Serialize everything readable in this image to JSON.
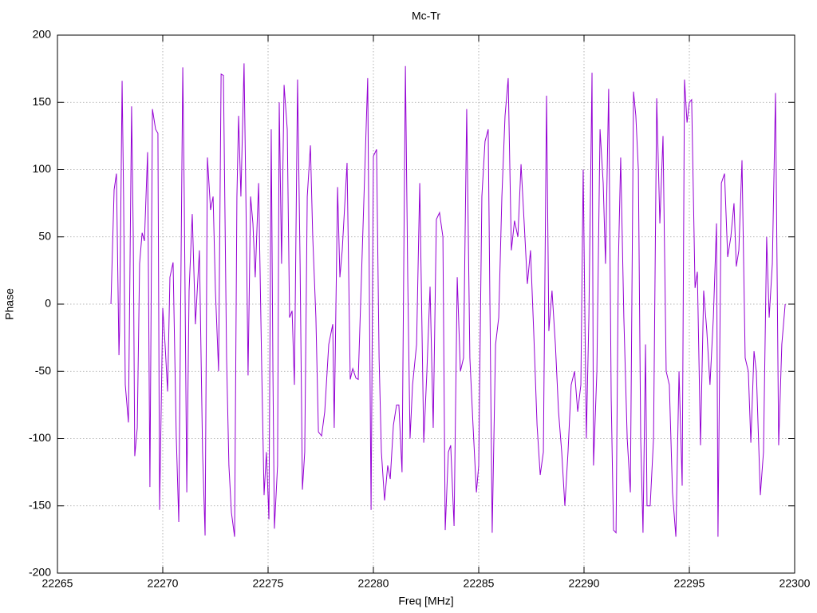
{
  "chart_data": {
    "type": "line",
    "title": "Mc-Tr",
    "xlabel": "Freq [MHz]",
    "ylabel": "Phase",
    "x": [
      22267.54,
      22267.69,
      22267.8,
      22267.92,
      22267.95,
      22268.07,
      22268.14,
      22268.22,
      22268.37,
      22268.52,
      22268.6,
      22268.67,
      22268.79,
      22268.9,
      22269.02,
      22269.13,
      22269.28,
      22269.39,
      22269.51,
      22269.66,
      22269.77,
      22269.85,
      22270.0,
      22270.11,
      22270.23,
      22270.34,
      22270.49,
      22270.64,
      22270.76,
      22270.95,
      22271.02,
      22271.14,
      22271.25,
      22271.4,
      22271.55,
      22271.74,
      22271.89,
      22272.01,
      22272.12,
      22272.27,
      22272.39,
      22272.5,
      22272.65,
      22272.77,
      22272.88,
      22273.03,
      22273.14,
      22273.26,
      22273.41,
      22273.52,
      22273.6,
      22273.71,
      22273.86,
      22273.98,
      22274.05,
      22274.17,
      22274.28,
      22274.39,
      22274.55,
      22274.7,
      22274.81,
      22274.92,
      22275.04,
      22275.15,
      22275.23,
      22275.3,
      22275.45,
      22275.53,
      22275.64,
      22275.76,
      22275.91,
      22276.02,
      22276.14,
      22276.25,
      22276.4,
      22276.52,
      22276.63,
      22276.74,
      22276.86,
      22277.01,
      22277.12,
      22277.27,
      22277.39,
      22277.54,
      22277.69,
      22277.88,
      22278.07,
      22278.14,
      22278.3,
      22278.41,
      22278.52,
      22278.75,
      22278.9,
      22279.02,
      22279.17,
      22279.28,
      22279.73,
      22279.89,
      22280.0,
      22280.15,
      22280.27,
      22280.38,
      22280.53,
      22280.68,
      22280.8,
      22280.95,
      22281.1,
      22281.21,
      22281.36,
      22281.52,
      22281.63,
      22281.74,
      22281.86,
      22282.05,
      22282.2,
      22282.39,
      22282.54,
      22282.69,
      22282.84,
      22282.99,
      22283.14,
      22283.3,
      22283.41,
      22283.56,
      22283.67,
      22283.83,
      22283.98,
      22284.13,
      22284.28,
      22284.43,
      22284.58,
      22284.73,
      22284.89,
      22285.0,
      22285.15,
      22285.3,
      22285.45,
      22285.64,
      22285.8,
      22285.95,
      22286.1,
      22286.25,
      22286.4,
      22286.55,
      22286.7,
      22286.86,
      22287.01,
      22287.16,
      22287.31,
      22287.46,
      22287.61,
      22287.77,
      22287.92,
      22288.07,
      22288.22,
      22288.33,
      22288.48,
      22288.64,
      22288.79,
      22288.94,
      22289.09,
      22289.24,
      22289.39,
      22289.55,
      22289.7,
      22289.85,
      22289.96,
      22290.11,
      22290.23,
      22290.38,
      22290.45,
      22290.61,
      22290.76,
      22290.91,
      22291.02,
      22291.17,
      22291.29,
      22291.4,
      22291.52,
      22291.63,
      22291.74,
      22291.89,
      22292.05,
      22292.2,
      22292.35,
      22292.46,
      22292.58,
      22292.69,
      22292.8,
      22292.92,
      22292.99,
      22293.14,
      22293.3,
      22293.45,
      22293.6,
      22293.75,
      22293.9,
      22294.05,
      22294.2,
      22294.36,
      22294.51,
      22294.66,
      22294.77,
      22294.89,
      22295.0,
      22295.11,
      22295.27,
      22295.38,
      22295.53,
      22295.68,
      22295.83,
      22295.98,
      22296.14,
      22296.29,
      22296.36,
      22296.52,
      22296.67,
      22296.82,
      22296.97,
      22297.12,
      22297.23,
      22297.35,
      22297.5,
      22297.65,
      22297.8,
      22297.92,
      22298.07,
      22298.18,
      22298.37,
      22298.52,
      22298.67,
      22298.79,
      22298.94,
      22299.09,
      22299.24,
      22299.39,
      22299.55
    ],
    "series": [
      {
        "name": "Mc-Tr",
        "color": "#9400d3",
        "values": [
          0,
          85,
          97,
          -38,
          -20,
          166,
          80,
          -60,
          -88,
          147,
          50,
          -113,
          -92,
          30,
          53,
          47,
          113,
          -136,
          145,
          130,
          127,
          -153,
          -3,
          -30,
          -65,
          20,
          31,
          -98,
          -162,
          176,
          80,
          -140,
          10,
          67,
          -15,
          40,
          -110,
          -172,
          109,
          70,
          80,
          10,
          -50,
          171,
          170,
          -40,
          -120,
          -155,
          -173,
          80,
          140,
          80,
          179,
          40,
          -53,
          80,
          60,
          20,
          90,
          -50,
          -142,
          -110,
          -160,
          130,
          -50,
          -167,
          -120,
          150,
          30,
          163,
          130,
          -10,
          -5,
          -60,
          167,
          30,
          -138,
          -110,
          80,
          118,
          50,
          -10,
          -95,
          -98,
          -80,
          -30,
          -15,
          -92,
          87,
          20,
          40,
          105,
          -56,
          -48,
          -55,
          -56,
          168,
          -153,
          110,
          115,
          -40,
          -110,
          -146,
          -120,
          -130,
          -90,
          -75,
          -75,
          -125,
          177,
          20,
          -100,
          -60,
          -30,
          90,
          -103,
          -50,
          13,
          -92,
          63,
          68,
          50,
          -168,
          -110,
          -105,
          -165,
          20,
          -50,
          -40,
          145,
          -40,
          -90,
          -140,
          -120,
          80,
          121,
          130,
          -170,
          -30,
          -10,
          80,
          140,
          168,
          40,
          62,
          50,
          104,
          60,
          15,
          40,
          -20,
          -90,
          -127,
          -110,
          155,
          -20,
          10,
          -30,
          -80,
          -110,
          -150,
          -110,
          -60,
          -50,
          -80,
          -60,
          100,
          -100,
          -10,
          172,
          -120,
          -50,
          130,
          90,
          30,
          160,
          -70,
          -168,
          -170,
          30,
          109,
          -10,
          -100,
          -140,
          158,
          140,
          100,
          -100,
          -170,
          -30,
          -150,
          -150,
          -100,
          153,
          60,
          125,
          -50,
          -60,
          -140,
          -173,
          -50,
          -135,
          167,
          135,
          150,
          152,
          12,
          24,
          -105,
          10,
          -20,
          -60,
          -10,
          60,
          -173,
          90,
          97,
          35,
          50,
          75,
          28,
          40,
          107,
          -40,
          -50,
          -103,
          -35,
          -50,
          -142,
          -110,
          50,
          -10,
          30,
          157,
          -105,
          -30,
          0
        ]
      }
    ],
    "xlim": [
      22265,
      22300
    ],
    "xticks": [
      22265,
      22270,
      22275,
      22280,
      22285,
      22290,
      22295,
      22300
    ],
    "ylim": [
      -200,
      200
    ],
    "yticks": [
      -200,
      -150,
      -100,
      -50,
      0,
      50,
      100,
      150,
      200
    ],
    "grid": true
  }
}
